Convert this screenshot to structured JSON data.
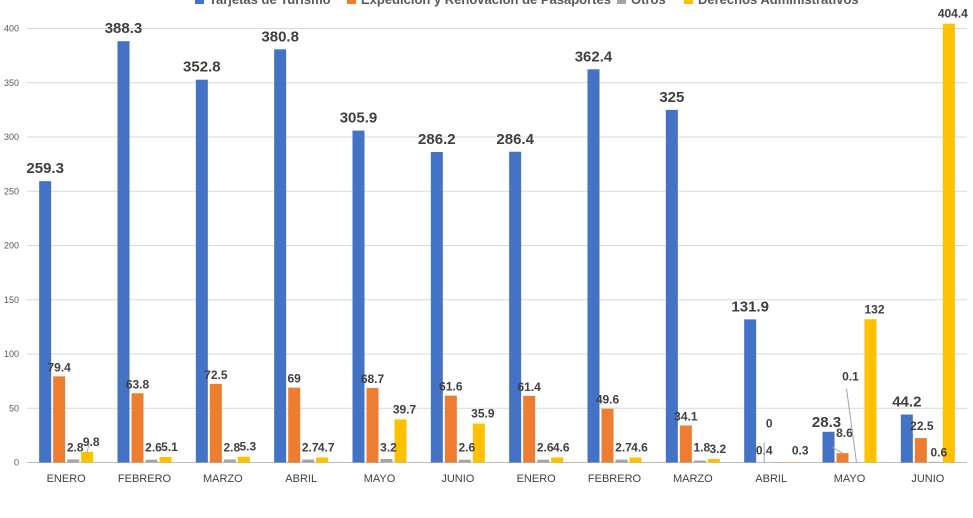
{
  "chart_data": {
    "type": "bar",
    "categories": [
      "ENERO",
      "FEBRERO",
      "MARZO",
      "ABRIL",
      "MAYO",
      "JUNIO",
      "ENERO",
      "FEBRERO",
      "MARZO",
      "ABRIL",
      "MAYO",
      "JUNIO"
    ],
    "series": [
      {
        "name": "Tarjetas de Turismo",
        "color": "#4472C4",
        "values": [
          259.3,
          388.3,
          352.8,
          380.8,
          305.9,
          286.2,
          286.4,
          362.4,
          325,
          131.9,
          28.3,
          44.2
        ],
        "labels": [
          "259.3",
          "388.3",
          "352.8",
          "380.8",
          "305.9",
          "286.2",
          "286.4",
          "362.4",
          "325",
          "131.9",
          "28.3",
          "44.2"
        ]
      },
      {
        "name": "Expedición y Renovación de Pasaportes",
        "color": "#ED7D31",
        "values": [
          79.4,
          63.8,
          72.5,
          69,
          68.7,
          61.6,
          61.4,
          49.6,
          34.1,
          0,
          8.6,
          22.5
        ],
        "labels": [
          "79.4",
          "63.8",
          "72.5",
          "69",
          "68.7",
          "61.6",
          "61.4",
          "49.6",
          "34.1",
          "0",
          "8.6",
          "22.5"
        ]
      },
      {
        "name": "Otros",
        "color": "#A5A5A5",
        "values": [
          2.8,
          2.6,
          2.8,
          2.7,
          3.2,
          2.6,
          2.6,
          2.7,
          1.8,
          0.4,
          0.1,
          0.6
        ],
        "labels": [
          "2.8",
          "2.6",
          "2.8",
          "2.7",
          "3.2",
          "2.6",
          "2.6",
          "2.7",
          "1.8",
          "0.4",
          "0.1",
          "0.6"
        ]
      },
      {
        "name": "Derechos Administrativos",
        "color": "#FFC000",
        "values": [
          9.8,
          5.1,
          5.3,
          4.7,
          39.7,
          35.9,
          4.6,
          4.6,
          3.2,
          0.3,
          132,
          404.4
        ],
        "labels": [
          "9.8",
          "5.1",
          "5.3",
          "4.7",
          "39.7",
          "35.9",
          "4.6",
          "4.6",
          "3.2",
          "0.3",
          "132",
          "404.4"
        ]
      }
    ],
    "yticks": [
      "0",
      "50",
      "100",
      "150",
      "200",
      "250",
      "300",
      "350",
      "400"
    ],
    "ylim": [
      0,
      450
    ],
    "grid": true,
    "legend_position": "top"
  }
}
